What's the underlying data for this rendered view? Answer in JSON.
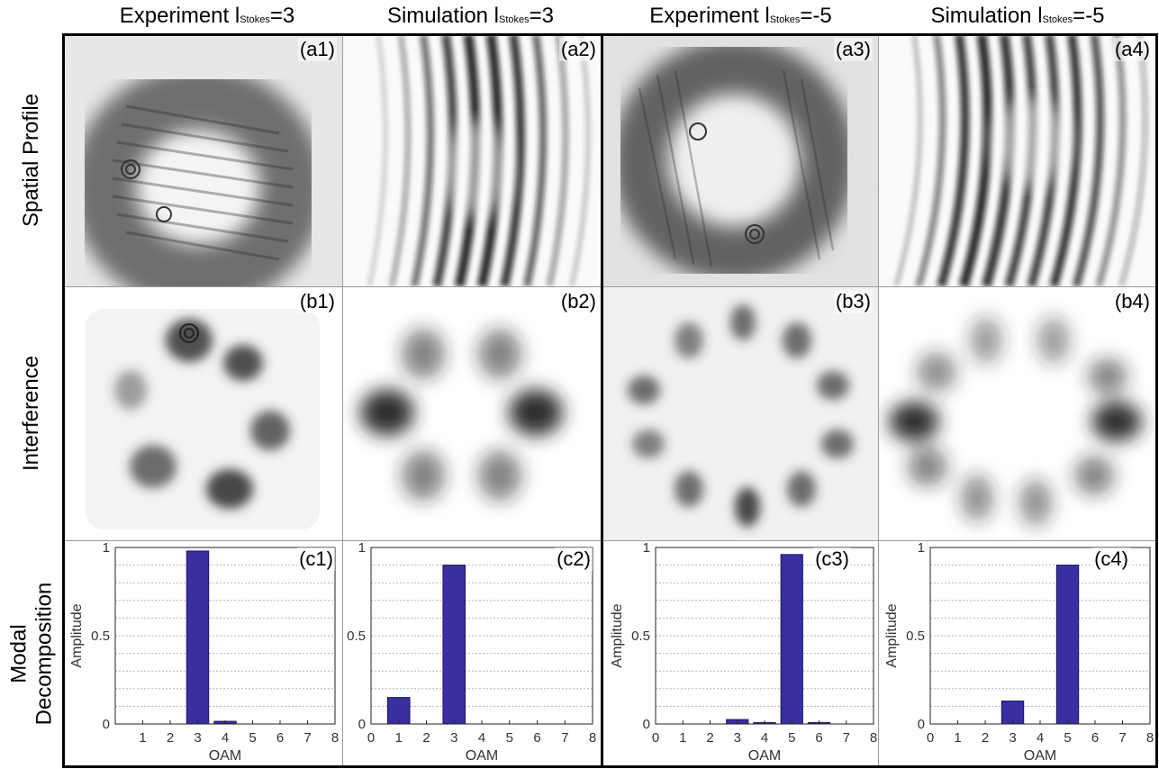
{
  "columns": [
    {
      "prefix": "Experiment l",
      "sub": "Stokes",
      "suffix": "=3"
    },
    {
      "prefix": "Simulation l",
      "sub": "Stokes",
      "suffix": "=3"
    },
    {
      "prefix": "Experiment l",
      "sub": "Stokes",
      "suffix": "=-5"
    },
    {
      "prefix": "Simulation l",
      "sub": "Stokes",
      "suffix": "=-5"
    }
  ],
  "rows": {
    "spatial": "Spatial Profile",
    "interference": "Interference",
    "modal_line1": "Modal",
    "modal_line2": "Decomposition"
  },
  "panel_labels": {
    "a": [
      "(a1)",
      "(a2)",
      "(a3)",
      "(a4)"
    ],
    "b": [
      "(b1)",
      "(b2)",
      "(b3)",
      "(b4)"
    ],
    "c": [
      "(c1)",
      "(c2)",
      "(c3)",
      "(c4)"
    ]
  },
  "colors": {
    "bar": "#3a2fa0",
    "grid": "#b5b5b5"
  },
  "chart_data": [
    {
      "type": "bar",
      "panel": "(c1)",
      "xlabel": "OAM",
      "ylabel": "Amplitude",
      "xlim": [
        0,
        8
      ],
      "ylim": [
        0,
        1
      ],
      "xticks": [
        "1",
        "2",
        "3",
        "4",
        "5",
        "6",
        "7",
        "8"
      ],
      "yticks": [
        "0",
        "0.5",
        "1"
      ],
      "categories": [
        1,
        2,
        3,
        4,
        5,
        6,
        7,
        8
      ],
      "values": [
        0,
        0,
        0.98,
        0.015,
        0,
        0,
        0,
        0
      ]
    },
    {
      "type": "bar",
      "panel": "(c2)",
      "xlabel": "OAM",
      "ylabel": "",
      "xlim": [
        0,
        8
      ],
      "ylim": [
        0,
        1
      ],
      "xticks": [
        "0",
        "1",
        "2",
        "3",
        "4",
        "5",
        "6",
        "7",
        "8"
      ],
      "yticks": [
        "0",
        "0.5",
        "1"
      ],
      "categories": [
        1,
        2,
        3,
        4,
        5,
        6,
        7,
        8
      ],
      "values": [
        0.15,
        0,
        0.9,
        0,
        0,
        0,
        0,
        0
      ]
    },
    {
      "type": "bar",
      "panel": "(c3)",
      "xlabel": "OAM",
      "ylabel": "Amplitude",
      "xlim": [
        0,
        8
      ],
      "ylim": [
        0,
        1
      ],
      "xticks": [
        "0",
        "1",
        "2",
        "3",
        "4",
        "5",
        "6",
        "7",
        "8"
      ],
      "yticks": [
        "0",
        "0.5",
        "1"
      ],
      "categories": [
        1,
        2,
        3,
        4,
        5,
        6,
        7,
        8
      ],
      "values": [
        0,
        0,
        0.025,
        0.008,
        0.96,
        0.008,
        0,
        0
      ]
    },
    {
      "type": "bar",
      "panel": "(c4)",
      "xlabel": "OAM",
      "ylabel": "Amplitude",
      "xlim": [
        0,
        8
      ],
      "ylim": [
        0,
        1
      ],
      "xticks": [
        "0",
        "1",
        "2",
        "3",
        "4",
        "5",
        "6",
        "7",
        "8"
      ],
      "yticks": [
        "0",
        "0.5",
        "1"
      ],
      "categories": [
        1,
        2,
        3,
        4,
        5,
        6,
        7,
        8
      ],
      "values": [
        0,
        0,
        0.13,
        0,
        0.9,
        0,
        0,
        0
      ]
    }
  ]
}
